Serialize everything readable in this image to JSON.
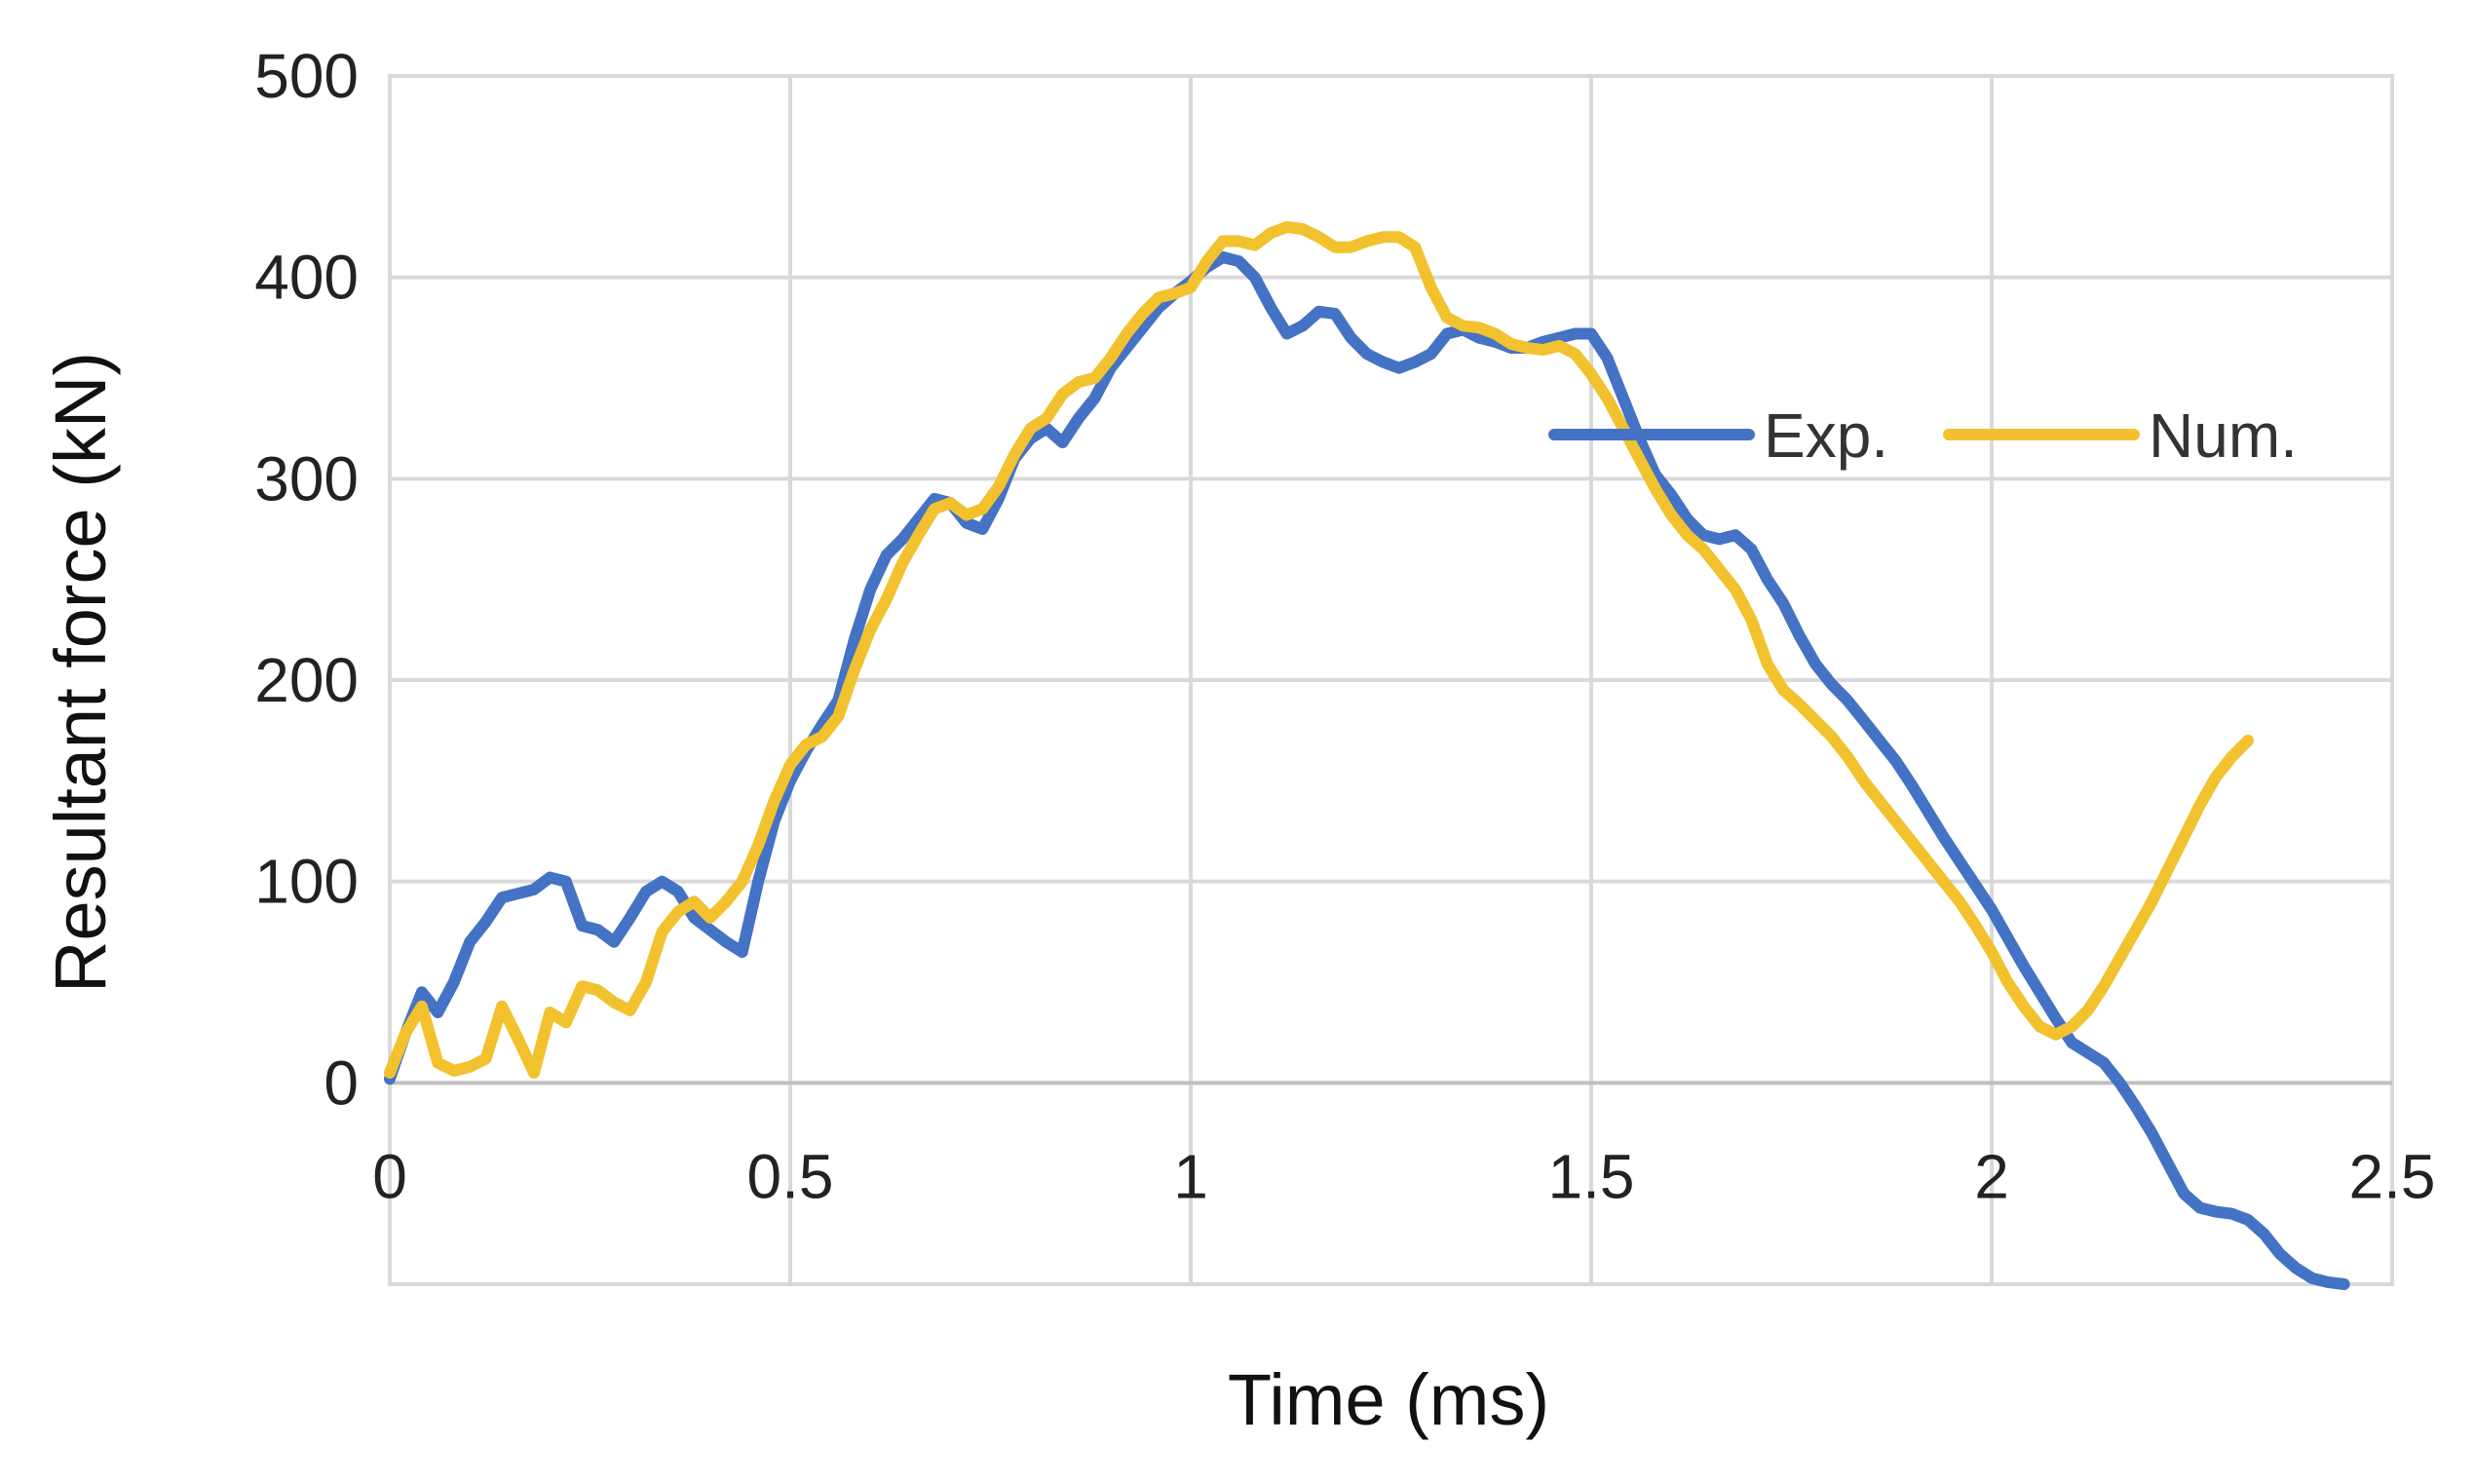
{
  "chart_data": {
    "type": "line",
    "title": "",
    "xlabel": "Time (ms)",
    "ylabel": "Resultant force (kN)",
    "xlim": [
      0,
      2.5
    ],
    "ylim": [
      -100,
      500
    ],
    "xticks": [
      0,
      0.5,
      1,
      1.5,
      2,
      2.5
    ],
    "xtick_labels": [
      "0",
      "0.5",
      "1",
      "1.5",
      "2",
      "2.5"
    ],
    "yticks": [
      0,
      100,
      200,
      300,
      400,
      500
    ],
    "ytick_labels": [
      "0",
      "100",
      "200",
      "300",
      "400",
      "500"
    ],
    "grid": true,
    "legend_position": "top-right",
    "series": [
      {
        "name": "Exp.",
        "color": "#4472c4",
        "points": [
          [
            0,
            2
          ],
          [
            0.02,
            25
          ],
          [
            0.04,
            45
          ],
          [
            0.06,
            35
          ],
          [
            0.08,
            50
          ],
          [
            0.1,
            70
          ],
          [
            0.12,
            80
          ],
          [
            0.14,
            92
          ],
          [
            0.16,
            94
          ],
          [
            0.18,
            96
          ],
          [
            0.2,
            102
          ],
          [
            0.22,
            100
          ],
          [
            0.24,
            78
          ],
          [
            0.26,
            76
          ],
          [
            0.28,
            70
          ],
          [
            0.3,
            82
          ],
          [
            0.32,
            95
          ],
          [
            0.34,
            100
          ],
          [
            0.36,
            95
          ],
          [
            0.38,
            82
          ],
          [
            0.4,
            76
          ],
          [
            0.42,
            70
          ],
          [
            0.44,
            65
          ],
          [
            0.46,
            100
          ],
          [
            0.48,
            130
          ],
          [
            0.5,
            150
          ],
          [
            0.52,
            165
          ],
          [
            0.54,
            178
          ],
          [
            0.56,
            190
          ],
          [
            0.58,
            220
          ],
          [
            0.6,
            245
          ],
          [
            0.62,
            262
          ],
          [
            0.64,
            270
          ],
          [
            0.66,
            280
          ],
          [
            0.68,
            290
          ],
          [
            0.7,
            288
          ],
          [
            0.72,
            278
          ],
          [
            0.74,
            275
          ],
          [
            0.76,
            290
          ],
          [
            0.78,
            310
          ],
          [
            0.8,
            320
          ],
          [
            0.82,
            325
          ],
          [
            0.84,
            318
          ],
          [
            0.86,
            330
          ],
          [
            0.88,
            340
          ],
          [
            0.9,
            355
          ],
          [
            0.92,
            365
          ],
          [
            0.94,
            375
          ],
          [
            0.96,
            385
          ],
          [
            0.98,
            392
          ],
          [
            1,
            398
          ],
          [
            1.02,
            405
          ],
          [
            1.04,
            410
          ],
          [
            1.06,
            408
          ],
          [
            1.08,
            400
          ],
          [
            1.1,
            385
          ],
          [
            1.12,
            372
          ],
          [
            1.14,
            376
          ],
          [
            1.16,
            383
          ],
          [
            1.18,
            382
          ],
          [
            1.2,
            370
          ],
          [
            1.22,
            362
          ],
          [
            1.24,
            358
          ],
          [
            1.26,
            355
          ],
          [
            1.28,
            358
          ],
          [
            1.3,
            362
          ],
          [
            1.32,
            372
          ],
          [
            1.34,
            374
          ],
          [
            1.36,
            370
          ],
          [
            1.38,
            368
          ],
          [
            1.4,
            365
          ],
          [
            1.42,
            365
          ],
          [
            1.44,
            368
          ],
          [
            1.46,
            370
          ],
          [
            1.48,
            372
          ],
          [
            1.5,
            372
          ],
          [
            1.52,
            360
          ],
          [
            1.54,
            340
          ],
          [
            1.56,
            320
          ],
          [
            1.58,
            302
          ],
          [
            1.6,
            292
          ],
          [
            1.62,
            280
          ],
          [
            1.64,
            272
          ],
          [
            1.66,
            270
          ],
          [
            1.68,
            272
          ],
          [
            1.7,
            265
          ],
          [
            1.72,
            250
          ],
          [
            1.74,
            238
          ],
          [
            1.76,
            222
          ],
          [
            1.78,
            208
          ],
          [
            1.8,
            198
          ],
          [
            1.82,
            190
          ],
          [
            1.84,
            180
          ],
          [
            1.86,
            170
          ],
          [
            1.88,
            160
          ],
          [
            1.9,
            148
          ],
          [
            1.92,
            135
          ],
          [
            1.94,
            122
          ],
          [
            1.96,
            110
          ],
          [
            1.98,
            98
          ],
          [
            2,
            86
          ],
          [
            2.02,
            72
          ],
          [
            2.04,
            58
          ],
          [
            2.06,
            45
          ],
          [
            2.08,
            32
          ],
          [
            2.1,
            20
          ],
          [
            2.12,
            15
          ],
          [
            2.14,
            10
          ],
          [
            2.16,
            0
          ],
          [
            2.18,
            -12
          ],
          [
            2.2,
            -25
          ],
          [
            2.22,
            -40
          ],
          [
            2.24,
            -55
          ],
          [
            2.26,
            -62
          ],
          [
            2.28,
            -64
          ],
          [
            2.3,
            -65
          ],
          [
            2.32,
            -68
          ],
          [
            2.34,
            -75
          ],
          [
            2.36,
            -85
          ],
          [
            2.38,
            -92
          ],
          [
            2.4,
            -97
          ],
          [
            2.42,
            -99
          ],
          [
            2.44,
            -100
          ]
        ]
      },
      {
        "name": "Num.",
        "color": "#f2c12e",
        "points": [
          [
            0,
            5
          ],
          [
            0.02,
            25
          ],
          [
            0.04,
            38
          ],
          [
            0.06,
            10
          ],
          [
            0.08,
            6
          ],
          [
            0.1,
            8
          ],
          [
            0.12,
            12
          ],
          [
            0.14,
            38
          ],
          [
            0.16,
            22
          ],
          [
            0.18,
            5
          ],
          [
            0.2,
            35
          ],
          [
            0.22,
            30
          ],
          [
            0.24,
            48
          ],
          [
            0.26,
            46
          ],
          [
            0.28,
            40
          ],
          [
            0.3,
            36
          ],
          [
            0.32,
            50
          ],
          [
            0.34,
            75
          ],
          [
            0.36,
            85
          ],
          [
            0.38,
            90
          ],
          [
            0.4,
            82
          ],
          [
            0.42,
            90
          ],
          [
            0.44,
            100
          ],
          [
            0.46,
            118
          ],
          [
            0.48,
            140
          ],
          [
            0.5,
            158
          ],
          [
            0.52,
            168
          ],
          [
            0.54,
            172
          ],
          [
            0.56,
            182
          ],
          [
            0.58,
            205
          ],
          [
            0.6,
            225
          ],
          [
            0.62,
            240
          ],
          [
            0.64,
            258
          ],
          [
            0.66,
            272
          ],
          [
            0.68,
            285
          ],
          [
            0.7,
            288
          ],
          [
            0.72,
            282
          ],
          [
            0.74,
            285
          ],
          [
            0.76,
            296
          ],
          [
            0.78,
            312
          ],
          [
            0.8,
            325
          ],
          [
            0.82,
            330
          ],
          [
            0.84,
            342
          ],
          [
            0.86,
            348
          ],
          [
            0.88,
            350
          ],
          [
            0.9,
            360
          ],
          [
            0.92,
            372
          ],
          [
            0.94,
            382
          ],
          [
            0.96,
            390
          ],
          [
            0.98,
            392
          ],
          [
            1,
            395
          ],
          [
            1.02,
            408
          ],
          [
            1.04,
            418
          ],
          [
            1.06,
            418
          ],
          [
            1.08,
            416
          ],
          [
            1.1,
            422
          ],
          [
            1.12,
            425
          ],
          [
            1.14,
            424
          ],
          [
            1.16,
            420
          ],
          [
            1.18,
            415
          ],
          [
            1.2,
            415
          ],
          [
            1.22,
            418
          ],
          [
            1.24,
            420
          ],
          [
            1.26,
            420
          ],
          [
            1.28,
            415
          ],
          [
            1.3,
            395
          ],
          [
            1.32,
            380
          ],
          [
            1.34,
            376
          ],
          [
            1.36,
            375
          ],
          [
            1.38,
            372
          ],
          [
            1.4,
            367
          ],
          [
            1.42,
            365
          ],
          [
            1.44,
            364
          ],
          [
            1.46,
            366
          ],
          [
            1.48,
            362
          ],
          [
            1.5,
            352
          ],
          [
            1.52,
            340
          ],
          [
            1.54,
            325
          ],
          [
            1.56,
            310
          ],
          [
            1.58,
            295
          ],
          [
            1.6,
            282
          ],
          [
            1.62,
            272
          ],
          [
            1.64,
            265
          ],
          [
            1.66,
            255
          ],
          [
            1.68,
            245
          ],
          [
            1.7,
            230
          ],
          [
            1.72,
            208
          ],
          [
            1.74,
            195
          ],
          [
            1.76,
            188
          ],
          [
            1.78,
            180
          ],
          [
            1.8,
            172
          ],
          [
            1.82,
            162
          ],
          [
            1.84,
            150
          ],
          [
            1.86,
            140
          ],
          [
            1.88,
            130
          ],
          [
            1.9,
            120
          ],
          [
            1.92,
            110
          ],
          [
            1.94,
            100
          ],
          [
            1.96,
            90
          ],
          [
            1.98,
            78
          ],
          [
            2,
            65
          ],
          [
            2.02,
            50
          ],
          [
            2.04,
            38
          ],
          [
            2.06,
            28
          ],
          [
            2.08,
            24
          ],
          [
            2.1,
            28
          ],
          [
            2.12,
            36
          ],
          [
            2.14,
            48
          ],
          [
            2.16,
            62
          ],
          [
            2.18,
            76
          ],
          [
            2.2,
            90
          ],
          [
            2.22,
            106
          ],
          [
            2.24,
            122
          ],
          [
            2.26,
            138
          ],
          [
            2.28,
            152
          ],
          [
            2.3,
            162
          ],
          [
            2.32,
            170
          ]
        ]
      }
    ]
  }
}
